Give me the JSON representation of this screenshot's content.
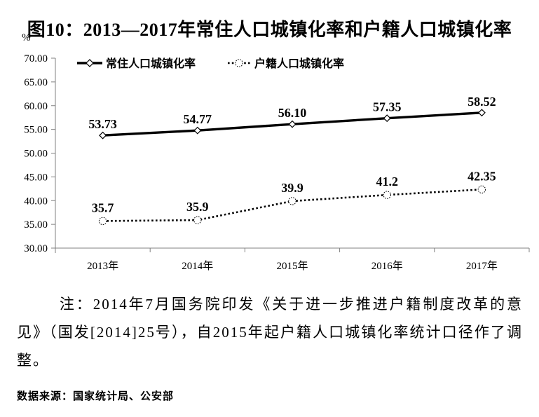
{
  "figure": {
    "title": "图10：2013—2017年常住人口城镇化率和户籍人口城镇化率",
    "note": "注：2014年7月国务院印发《关于进一步推进户籍制度改革的意见》（国发[2014]25号），自2015年起户籍人口城镇化率统计口径作了调整。",
    "source": "数据来源：国家统计局、公安部"
  },
  "chart_data": {
    "type": "line",
    "ylabel": "%",
    "categories": [
      "2013年",
      "2014年",
      "2015年",
      "2016年",
      "2017年"
    ],
    "series": [
      {
        "name": "常住人口城镇化率",
        "style": "solid",
        "marker": "diamond",
        "values": [
          53.73,
          54.77,
          56.1,
          57.35,
          58.52
        ],
        "labels": [
          "53.73",
          "54.77",
          "56.10",
          "57.35",
          "58.52"
        ]
      },
      {
        "name": "户籍人口城镇化率",
        "style": "dotted",
        "marker": "circle",
        "values": [
          35.7,
          35.9,
          39.9,
          41.2,
          42.35
        ],
        "labels": [
          "35.7",
          "35.9",
          "39.9",
          "41.2",
          "42.35"
        ]
      }
    ],
    "ylim": [
      30,
      70
    ],
    "y_tick_values": [
      70,
      65,
      60,
      55,
      50,
      45,
      40,
      35,
      30
    ],
    "y_tick_labels": [
      "70.00",
      "65.00",
      "60.00",
      "55.00",
      "50.00",
      "45.00",
      "40.00",
      "35.00",
      "30.00"
    ],
    "legend_position": "top-inside",
    "grid": false,
    "colors": {
      "line": "#000000",
      "axis": "#808080",
      "text": "#000000",
      "marker_fill": "#ffffff",
      "background": "#ffffff"
    }
  }
}
